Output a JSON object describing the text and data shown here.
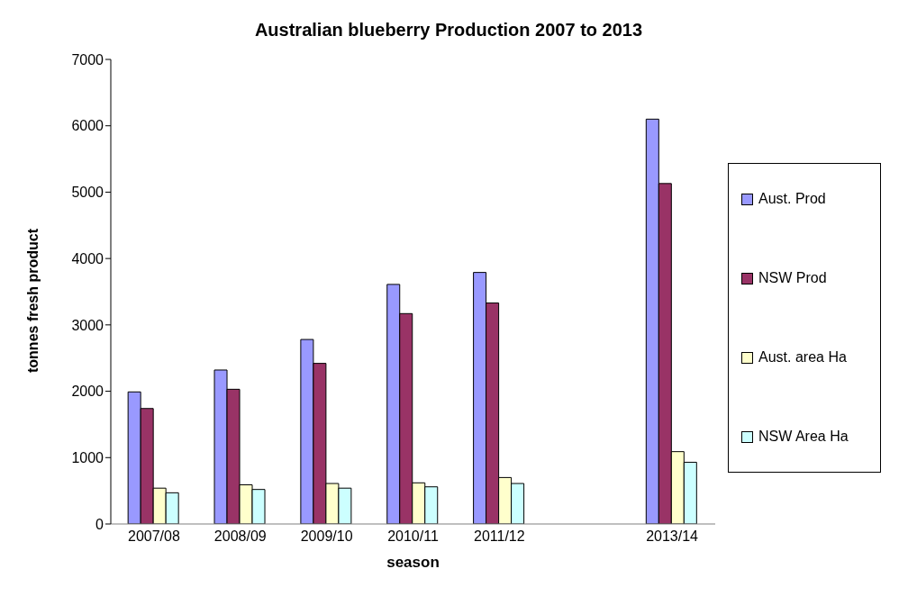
{
  "chart_data": {
    "type": "bar",
    "title": "Australian blueberry Production 2007 to 2013",
    "xlabel": "season",
    "ylabel": "tonnes fresh product",
    "categories": [
      "2007/08",
      "2008/09",
      "2009/10",
      "2010/11",
      "2011/12",
      null,
      "2013/14"
    ],
    "series": [
      {
        "name": "Aust. Prod",
        "color": "#9999ff",
        "values": [
          1990,
          2320,
          2780,
          3610,
          3790,
          null,
          6100
        ]
      },
      {
        "name": "NSW Prod",
        "color": "#993366",
        "values": [
          1740,
          2030,
          2420,
          3170,
          3330,
          null,
          5130
        ]
      },
      {
        "name": "Aust. area Ha",
        "color": "#ffffcc",
        "values": [
          540,
          590,
          610,
          620,
          700,
          null,
          1090
        ]
      },
      {
        "name": "NSW Area Ha",
        "color": "#ccffff",
        "values": [
          470,
          520,
          540,
          560,
          610,
          null,
          930
        ]
      }
    ],
    "ylim": [
      0,
      7000
    ],
    "yticks": [
      0,
      1000,
      2000,
      3000,
      4000,
      5000,
      6000,
      7000
    ],
    "legend": "right"
  }
}
